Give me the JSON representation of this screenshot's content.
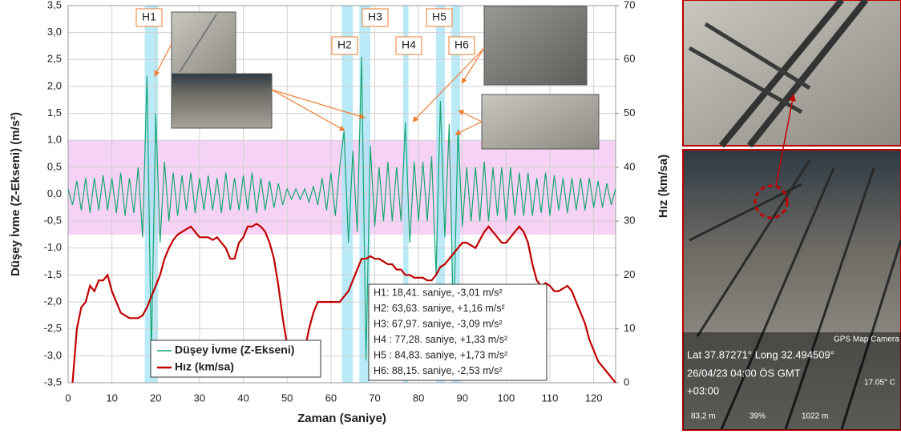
{
  "chart_data": {
    "type": "line",
    "ylabel": "Düşey İvme (Z-Ekseni) (m/s²)",
    "y2label": "Hız (km/sa)",
    "xlabel": "Zaman (Saniye)",
    "xlim": [
      0,
      125
    ],
    "ylim": [
      -3.5,
      3.5
    ],
    "y2lim": [
      0,
      70
    ],
    "xticks": [
      0,
      10,
      20,
      30,
      40,
      50,
      60,
      70,
      80,
      90,
      100,
      110,
      120
    ],
    "yticks": [
      {
        "value": -3.5,
        "label": "-3,5"
      },
      {
        "value": -3,
        "label": "-3,0"
      },
      {
        "value": -2.5,
        "label": "-2,5"
      },
      {
        "value": -2,
        "label": "-2,0"
      },
      {
        "value": -1.5,
        "label": "-1,5"
      },
      {
        "value": -1,
        "label": "-1,0"
      },
      {
        "value": -0.5,
        "label": "-0,5"
      },
      {
        "value": 0,
        "label": "0,0"
      },
      {
        "value": 0.5,
        "label": "0,5"
      },
      {
        "value": 1,
        "label": "1,0"
      },
      {
        "value": 1.5,
        "label": "1,5"
      },
      {
        "value": 2,
        "label": "2,0"
      },
      {
        "value": 2.5,
        "label": "2,5"
      },
      {
        "value": 3,
        "label": "3,0"
      },
      {
        "value": 3.5,
        "label": "3,5"
      }
    ],
    "y2ticks": [
      0,
      10,
      20,
      30,
      40,
      50,
      60,
      70
    ],
    "grid": true,
    "threshold_band": {
      "color": "#f6d3f4",
      "range": [
        -0.75,
        1.0
      ]
    },
    "highlight_bands": {
      "color": "#a9e5f5",
      "ranges": [
        [
          17.5,
          20.5
        ],
        [
          62.5,
          65
        ],
        [
          66.5,
          69
        ],
        [
          76.5,
          77.7
        ],
        [
          84,
          86
        ],
        [
          87.5,
          89.5
        ]
      ]
    },
    "x": [
      0,
      1,
      2,
      3,
      4,
      5,
      6,
      7,
      8,
      9,
      10,
      11,
      12,
      13,
      14,
      15,
      16,
      17,
      18,
      19,
      20,
      21,
      22,
      23,
      24,
      25,
      26,
      27,
      28,
      29,
      30,
      31,
      32,
      33,
      34,
      35,
      36,
      37,
      38,
      39,
      40,
      41,
      42,
      43,
      44,
      45,
      46,
      47,
      48,
      49,
      50,
      51,
      52,
      53,
      54,
      55,
      56,
      57,
      58,
      59,
      60,
      61,
      62,
      63,
      64,
      65,
      66,
      67,
      68,
      69,
      70,
      71,
      72,
      73,
      74,
      75,
      76,
      77,
      78,
      79,
      80,
      81,
      82,
      83,
      84,
      85,
      86,
      87,
      88,
      89,
      90,
      91,
      92,
      93,
      94,
      95,
      96,
      97,
      98,
      99,
      100,
      101,
      102,
      103,
      104,
      105,
      106,
      107,
      108,
      109,
      110,
      111,
      112,
      113,
      114,
      115,
      116,
      117,
      118,
      119,
      120,
      121,
      122,
      123,
      124,
      125
    ],
    "series": [
      {
        "name": "Düşey İvme (Z-Ekseni)",
        "color": "#17a673",
        "values": [
          0.1,
          -0.2,
          0.25,
          -0.3,
          0.3,
          -0.35,
          0.3,
          -0.3,
          0.35,
          -0.3,
          0.3,
          -0.35,
          0.4,
          -0.4,
          0.3,
          -0.35,
          0.5,
          -0.8,
          2.2,
          -3.0,
          1.5,
          -0.9,
          0.6,
          -0.5,
          0.4,
          -0.4,
          0.35,
          -0.3,
          0.4,
          -0.35,
          0.3,
          -0.3,
          0.35,
          -0.3,
          0.3,
          -0.35,
          0.4,
          -0.3,
          0.3,
          -0.3,
          0.35,
          -0.3,
          0.4,
          -0.35,
          0.3,
          -0.3,
          0.25,
          -0.25,
          0.2,
          -0.2,
          0.1,
          -0.1,
          0.1,
          -0.1,
          0.1,
          -0.15,
          0.15,
          -0.2,
          0.3,
          -0.3,
          0.4,
          -0.4,
          0.5,
          1.16,
          -0.9,
          0.8,
          -0.7,
          2.55,
          -3.09,
          0.9,
          -0.6,
          0.5,
          -0.5,
          0.6,
          -0.5,
          0.5,
          -0.5,
          1.33,
          -0.9,
          0.6,
          -0.5,
          0.6,
          -0.5,
          0.7,
          -1.5,
          1.73,
          -0.8,
          1.3,
          -2.53,
          1.2,
          -0.6,
          0.5,
          -0.5,
          0.5,
          -0.5,
          0.6,
          -0.5,
          0.5,
          -0.4,
          0.5,
          -0.5,
          0.5,
          -0.4,
          0.4,
          -0.4,
          0.4,
          -0.4,
          0.3,
          -0.35,
          0.4,
          -0.4,
          0.35,
          -0.3,
          0.3,
          -0.35,
          0.3,
          -0.3,
          0.3,
          -0.3,
          0.3,
          -0.25,
          0.25,
          -0.25,
          0.2,
          -0.2,
          0.1
        ]
      },
      {
        "name": "Hız (km/sa)",
        "color": "#c00000",
        "axis": "y2",
        "values": [
          null,
          0,
          10,
          14,
          15,
          18,
          17,
          19,
          19,
          20,
          17,
          15,
          13,
          12.5,
          12,
          12,
          12,
          12.5,
          14,
          16,
          18,
          20,
          23,
          25,
          26.5,
          27.5,
          28,
          28.5,
          29,
          28,
          27,
          27,
          27,
          26.5,
          27,
          26,
          25,
          23,
          23,
          26,
          27,
          29,
          29,
          29.5,
          29,
          28,
          26,
          23,
          18,
          12,
          7,
          4,
          3,
          4,
          6,
          10,
          13,
          15,
          15,
          15,
          15,
          15,
          15,
          16,
          17,
          19,
          21,
          23,
          23,
          23.5,
          23,
          23,
          22.5,
          22,
          22,
          21,
          21,
          20,
          20,
          19.5,
          19.5,
          19.5,
          19,
          19,
          20,
          21.5,
          22,
          23,
          24,
          25,
          26,
          26,
          25.5,
          25,
          26.5,
          28,
          29,
          28,
          27,
          26,
          26,
          27,
          28,
          29,
          28,
          26,
          22,
          19,
          18,
          18.5,
          18,
          17,
          17,
          17.5,
          18,
          17,
          15,
          13,
          11,
          8,
          6,
          4,
          3,
          2,
          1,
          0
        ]
      }
    ],
    "legend": "lower-left",
    "annotations": [
      "H1",
      "H2",
      "H3",
      "H4",
      "H5",
      "H6"
    ],
    "info_box": [
      "H1: 18,41. saniye, -3,01 m/s²",
      "H2: 63,63. saniye, +1,16 m/s²",
      "H3: 67,97. saniye, -3,09 m/s²",
      "H4 : 77,28. saniye, +1,33 m/s²",
      "H5 : 84,83. saniye, +1,73 m/s²",
      "H6: 88,15. saniye, -2,53 m/s²"
    ]
  },
  "photo": {
    "brand": "GPS Map Camera",
    "coords": "Lat 37.87271° Long 32.494509°",
    "datetime": "26/04/23 04:00 ÖS GMT",
    "timezone": "+03:00",
    "temperature": "17.05° C",
    "altitude": "83,2 m",
    "humidity": "39%",
    "pressure": "1022 m"
  }
}
